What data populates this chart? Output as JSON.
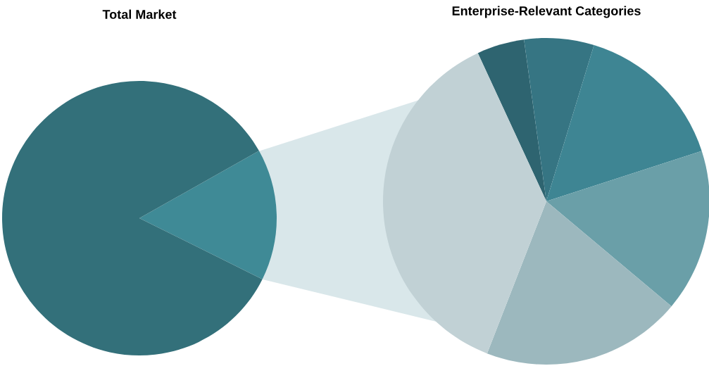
{
  "chart_data": [
    {
      "type": "pie",
      "title": "Total Market",
      "categories": [
        null,
        null
      ],
      "values": [
        15.5,
        84.5
      ],
      "colors": [
        "#3f8a96",
        "#33707a"
      ]
    },
    {
      "type": "pie",
      "title": "Enterprise-Relevant Categories",
      "categories": [
        null,
        null,
        null,
        null,
        null,
        null
      ],
      "values": [
        4.7,
        6.9,
        15.3,
        16.1,
        19.8,
        37.2
      ],
      "colors": [
        "#2e6470",
        "#367583",
        "#3e8593",
        "#6a9fa8",
        "#9cb8be",
        "#c1d1d5"
      ]
    }
  ]
}
